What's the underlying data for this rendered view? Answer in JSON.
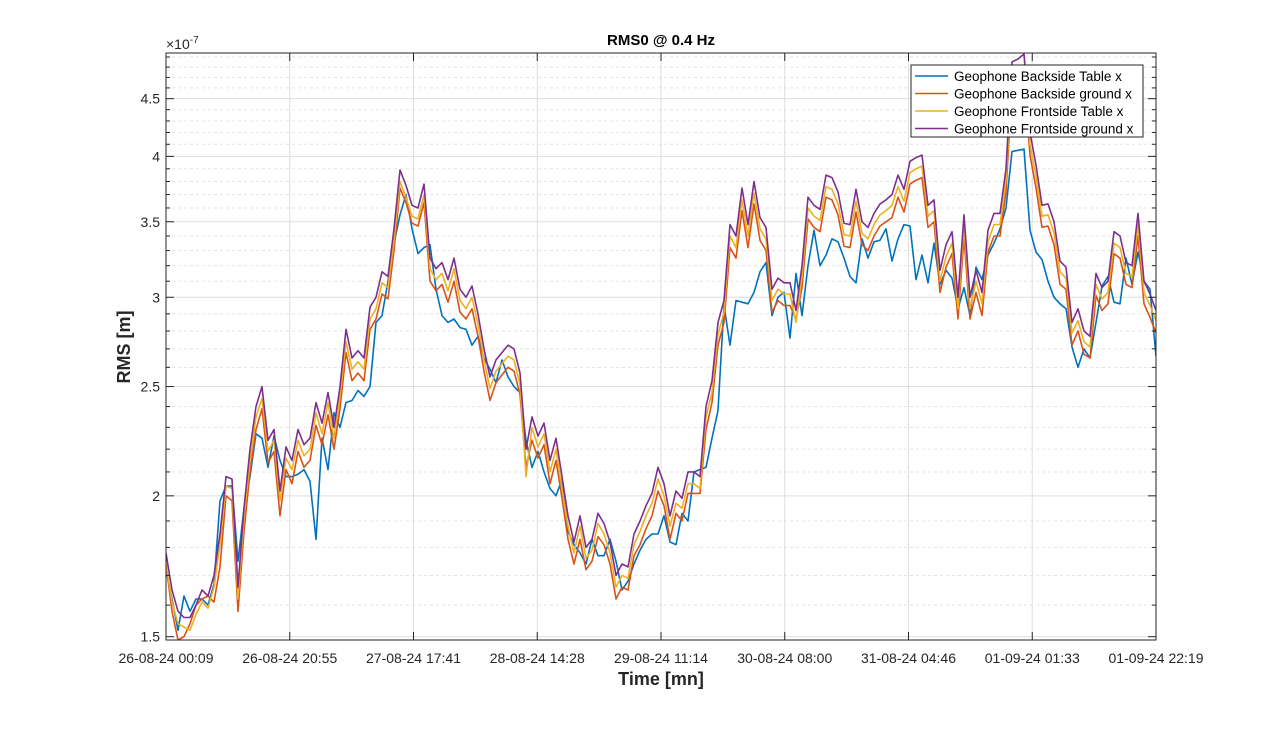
{
  "chart_data": {
    "type": "line",
    "title": "RMS0 @ 0.4 Hz",
    "xlabel": "Time [mn]",
    "ylabel": "RMS [m]",
    "y_exponent_label": "×10",
    "y_exponent": "-7",
    "y_scale": "log",
    "ylim": [
      1.49,
      4.94
    ],
    "yticks": [
      1.5,
      2,
      2.5,
      3,
      3.5,
      4,
      4.5
    ],
    "ytick_labels": [
      "1.5",
      "2",
      "2.5",
      "3",
      "3.5",
      "4",
      "4.5"
    ],
    "y_minor_ticks": [
      1.6,
      1.7,
      1.8,
      1.9,
      2.1,
      2.2,
      2.3,
      2.4,
      2.6,
      2.7,
      2.8,
      2.9,
      3.1,
      3.2,
      3.3,
      3.4,
      3.6,
      3.7,
      3.8,
      3.9,
      4.1,
      4.2,
      4.3,
      4.4,
      4.6,
      4.7,
      4.8,
      4.9
    ],
    "xlim": [
      0,
      165
    ],
    "x_unit": "hours since 26-08-24 00:09 (approx. hourly samples)",
    "xtick_labels": [
      "26-08-24 00:09",
      "26-08-24 20:55",
      "27-08-24 17:41",
      "28-08-24 14:28",
      "29-08-24 11:14",
      "30-08-24 08:00",
      "31-08-24 04:46",
      "01-09-24 01:33",
      "01-09-24 22:19"
    ],
    "grid": true,
    "legend_position": "top-right",
    "series": [
      {
        "name": "Geophone Backside Table x",
        "color": "#0072BD",
        "values": [
          1.72,
          1.62,
          1.52,
          1.63,
          1.58,
          1.62,
          1.62,
          1.6,
          1.67,
          1.98,
          2.04,
          2.04,
          1.75,
          1.95,
          2.08,
          2.27,
          2.25,
          2.12,
          2.26,
          2.15,
          2.08,
          2.08,
          2.09,
          2.11,
          2.06,
          1.83,
          2.25,
          2.11,
          2.37,
          2.3,
          2.42,
          2.43,
          2.48,
          2.45,
          2.5,
          2.85,
          2.89,
          3.1,
          3.35,
          3.55,
          3.7,
          3.45,
          3.28,
          3.32,
          3.34,
          3.05,
          2.89,
          2.85,
          2.87,
          2.82,
          2.81,
          2.72,
          2.77,
          2.65,
          2.59,
          2.52,
          2.64,
          2.55,
          2.5,
          2.47,
          2.24,
          2.12,
          2.19,
          2.1,
          2.03,
          2.0,
          2.07,
          1.86,
          1.81,
          1.78,
          1.74,
          1.83,
          1.77,
          1.77,
          1.83,
          1.75,
          1.65,
          1.68,
          1.74,
          1.79,
          1.83,
          1.85,
          1.85,
          1.92,
          1.82,
          1.81,
          1.93,
          1.9,
          2.1,
          2.11,
          2.12,
          2.25,
          2.38,
          2.95,
          2.72,
          2.98,
          2.97,
          2.96,
          3.03,
          3.16,
          3.22,
          2.89,
          3.0,
          3.03,
          2.76,
          3.15,
          2.89,
          3.2,
          3.44,
          3.2,
          3.27,
          3.38,
          3.36,
          3.25,
          3.13,
          3.09,
          3.38,
          3.25,
          3.36,
          3.37,
          3.45,
          3.23,
          3.38,
          3.48,
          3.47,
          3.11,
          3.27,
          3.09,
          3.35,
          3.08,
          3.17,
          3.12,
          2.93,
          3.06,
          2.89,
          3.19,
          3.11,
          3.27,
          3.35,
          3.45,
          3.6,
          4.04,
          4.05,
          4.06,
          3.44,
          3.29,
          3.24,
          3.1,
          3.0,
          2.96,
          2.93,
          2.71,
          2.6,
          2.7,
          2.65,
          2.85,
          3.07,
          3.13,
          2.97,
          2.96,
          3.25,
          3.08,
          3.29,
          3.1,
          3.05,
          2.66
        ]
      },
      {
        "name": "Geophone Backside ground x",
        "color": "#D95319",
        "values": [
          1.74,
          1.58,
          1.49,
          1.5,
          1.54,
          1.6,
          1.62,
          1.63,
          1.61,
          1.73,
          2.0,
          1.98,
          1.58,
          1.86,
          2.1,
          2.29,
          2.39,
          2.14,
          2.19,
          1.92,
          2.11,
          2.05,
          2.19,
          2.12,
          2.15,
          2.31,
          2.22,
          2.36,
          2.2,
          2.39,
          2.68,
          2.53,
          2.57,
          2.53,
          2.81,
          2.87,
          3.02,
          2.99,
          3.3,
          3.75,
          3.64,
          3.49,
          3.47,
          3.64,
          3.1,
          3.04,
          3.08,
          2.97,
          3.1,
          2.91,
          2.87,
          2.93,
          2.77,
          2.58,
          2.43,
          2.52,
          2.56,
          2.6,
          2.58,
          2.46,
          2.12,
          2.24,
          2.16,
          2.22,
          2.05,
          2.15,
          1.99,
          1.83,
          1.74,
          1.83,
          1.72,
          1.75,
          1.84,
          1.81,
          1.74,
          1.62,
          1.66,
          1.65,
          1.77,
          1.81,
          1.87,
          1.92,
          2.02,
          1.96,
          1.83,
          1.93,
          1.9,
          2.01,
          2.01,
          2.01,
          2.29,
          2.42,
          2.72,
          2.85,
          3.32,
          3.25,
          3.58,
          3.32,
          3.63,
          3.37,
          3.3,
          2.91,
          2.98,
          2.95,
          2.95,
          2.87,
          3.06,
          3.52,
          3.46,
          3.43,
          3.68,
          3.66,
          3.55,
          3.33,
          3.32,
          3.57,
          3.34,
          3.3,
          3.4,
          3.47,
          3.5,
          3.53,
          3.68,
          3.57,
          3.78,
          3.81,
          3.83,
          3.46,
          3.5,
          3.03,
          3.19,
          3.28,
          2.87,
          3.39,
          2.87,
          3.03,
          2.89,
          3.29,
          3.4,
          3.4,
          3.72,
          4.63,
          4.66,
          4.71,
          4.01,
          3.75,
          3.46,
          3.47,
          3.34,
          3.08,
          3.05,
          2.72,
          2.8,
          2.67,
          2.65,
          3.01,
          2.92,
          2.96,
          3.28,
          3.25,
          3.08,
          3.06,
          3.4,
          2.96,
          2.88,
          2.79
        ]
      },
      {
        "name": "Geophone Frontside Table x",
        "color": "#EDB120",
        "values": [
          1.74,
          1.61,
          1.54,
          1.53,
          1.52,
          1.57,
          1.61,
          1.59,
          1.66,
          1.81,
          2.04,
          2.03,
          1.62,
          1.91,
          2.15,
          2.35,
          2.44,
          2.19,
          2.24,
          1.98,
          2.16,
          2.11,
          2.24,
          2.17,
          2.2,
          2.37,
          2.27,
          2.42,
          2.25,
          2.45,
          2.74,
          2.59,
          2.63,
          2.59,
          2.87,
          2.93,
          3.09,
          3.06,
          3.37,
          3.8,
          3.68,
          3.54,
          3.52,
          3.7,
          3.18,
          3.11,
          3.15,
          3.04,
          3.18,
          2.98,
          2.93,
          3.0,
          2.84,
          2.64,
          2.49,
          2.58,
          2.62,
          2.66,
          2.64,
          2.51,
          2.08,
          2.3,
          2.21,
          2.27,
          2.1,
          2.2,
          2.03,
          1.88,
          1.78,
          1.88,
          1.76,
          1.79,
          1.89,
          1.85,
          1.78,
          1.66,
          1.7,
          1.69,
          1.81,
          1.86,
          1.92,
          1.97,
          2.07,
          2.0,
          1.88,
          1.97,
          1.95,
          2.05,
          2.05,
          2.03,
          2.35,
          2.47,
          2.78,
          2.91,
          3.4,
          3.32,
          3.66,
          3.4,
          3.71,
          3.45,
          3.38,
          2.98,
          3.05,
          3.02,
          3.02,
          2.85,
          3.13,
          3.6,
          3.54,
          3.51,
          3.76,
          3.74,
          3.63,
          3.41,
          3.4,
          3.65,
          3.42,
          3.38,
          3.48,
          3.55,
          3.58,
          3.62,
          3.76,
          3.65,
          3.87,
          3.9,
          3.92,
          3.54,
          3.58,
          3.1,
          3.26,
          3.35,
          2.93,
          3.47,
          2.93,
          3.1,
          2.96,
          3.36,
          3.48,
          3.48,
          3.81,
          4.74,
          4.77,
          4.82,
          4.1,
          3.84,
          3.54,
          3.55,
          3.42,
          3.16,
          3.12,
          2.79,
          2.86,
          2.74,
          2.71,
          3.08,
          2.99,
          3.03,
          3.35,
          3.32,
          3.15,
          3.13,
          3.48,
          3.03,
          2.95,
          2.86
        ]
      },
      {
        "name": "Geophone Frontside ground x",
        "color": "#7E2F8E",
        "values": [
          1.78,
          1.65,
          1.58,
          1.56,
          1.56,
          1.6,
          1.65,
          1.63,
          1.7,
          1.85,
          2.08,
          2.07,
          1.66,
          1.95,
          2.2,
          2.4,
          2.5,
          2.24,
          2.29,
          2.02,
          2.21,
          2.15,
          2.29,
          2.22,
          2.25,
          2.42,
          2.32,
          2.47,
          2.3,
          2.5,
          2.81,
          2.65,
          2.69,
          2.65,
          2.94,
          3.0,
          3.16,
          3.13,
          3.45,
          3.89,
          3.77,
          3.62,
          3.6,
          3.78,
          3.25,
          3.18,
          3.22,
          3.11,
          3.25,
          3.05,
          3.0,
          3.07,
          2.9,
          2.7,
          2.55,
          2.64,
          2.68,
          2.72,
          2.7,
          2.57,
          2.2,
          2.35,
          2.26,
          2.32,
          2.15,
          2.25,
          2.08,
          1.92,
          1.82,
          1.92,
          1.8,
          1.83,
          1.93,
          1.89,
          1.82,
          1.7,
          1.74,
          1.73,
          1.85,
          1.9,
          1.96,
          2.01,
          2.12,
          2.05,
          1.92,
          2.02,
          1.99,
          2.1,
          2.1,
          2.08,
          2.4,
          2.53,
          2.85,
          2.98,
          3.48,
          3.4,
          3.75,
          3.48,
          3.8,
          3.53,
          3.46,
          3.05,
          3.12,
          3.09,
          3.09,
          2.92,
          3.2,
          3.68,
          3.62,
          3.59,
          3.85,
          3.83,
          3.72,
          3.49,
          3.48,
          3.74,
          3.5,
          3.46,
          3.56,
          3.63,
          3.66,
          3.7,
          3.85,
          3.74,
          3.96,
          3.99,
          4.01,
          3.62,
          3.66,
          3.17,
          3.34,
          3.43,
          3.0,
          3.55,
          3.0,
          3.17,
          3.03,
          3.44,
          3.56,
          3.56,
          3.9,
          4.85,
          4.88,
          4.93,
          4.2,
          3.93,
          3.62,
          3.63,
          3.5,
          3.23,
          3.19,
          2.85,
          2.93,
          2.8,
          2.77,
          3.15,
          3.06,
          3.1,
          3.43,
          3.4,
          3.22,
          3.2,
          3.56,
          3.1,
          3.02,
          2.92
        ]
      }
    ]
  }
}
